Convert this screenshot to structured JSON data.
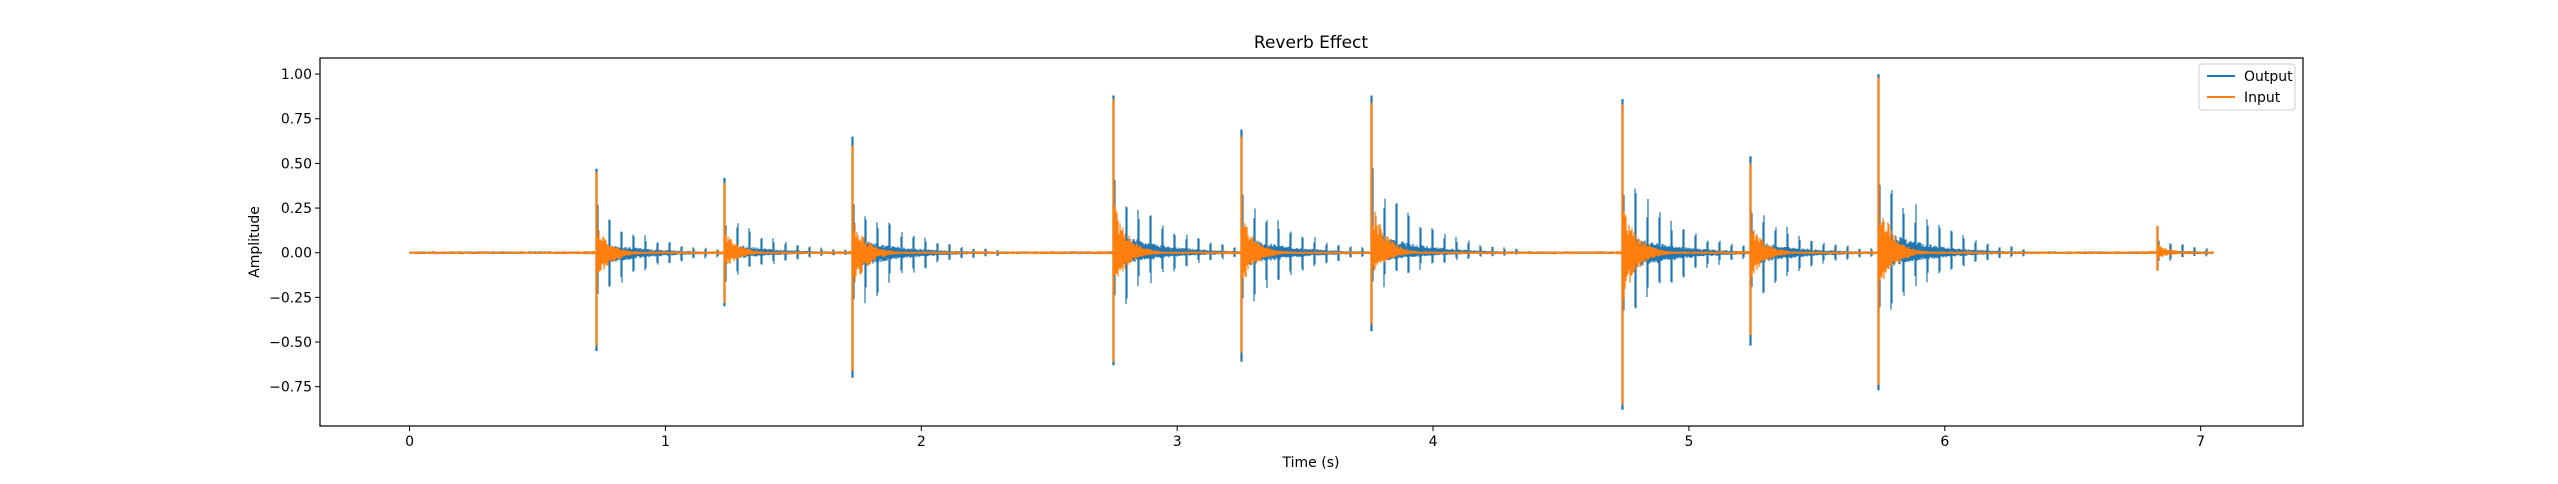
{
  "chart_data": {
    "type": "line",
    "title": "Reverb Effect",
    "xlabel": "Time (s)",
    "ylabel": "Amplitude",
    "xlim": [
      -0.35,
      7.4
    ],
    "ylim": [
      -0.97,
      1.09
    ],
    "x_ticks": [
      0,
      1,
      2,
      3,
      4,
      5,
      6,
      7
    ],
    "y_ticks": [
      -0.75,
      -0.5,
      -0.25,
      0.0,
      0.25,
      0.5,
      0.75,
      1.0
    ],
    "x_tick_labels": [
      "0",
      "1",
      "2",
      "3",
      "4",
      "5",
      "6",
      "7"
    ],
    "y_tick_labels": [
      "−0.75",
      "−0.50",
      "−0.25",
      "0.00",
      "0.25",
      "0.50",
      "0.75",
      "1.00"
    ],
    "grid": false,
    "legend_position": "top-right",
    "duration": 7.05,
    "series": [
      {
        "name": "Output",
        "color": "#1f77b4",
        "peaks": [
          {
            "t": 0.73,
            "max": 0.47,
            "min": -0.55
          },
          {
            "t": 1.23,
            "max": 0.42,
            "min": -0.3
          },
          {
            "t": 1.73,
            "max": 0.65,
            "min": -0.7
          },
          {
            "t": 2.75,
            "max": 0.88,
            "min": -0.63
          },
          {
            "t": 3.25,
            "max": 0.69,
            "min": -0.61
          },
          {
            "t": 3.76,
            "max": 0.88,
            "min": -0.44
          },
          {
            "t": 4.74,
            "max": 0.86,
            "min": -0.88
          },
          {
            "t": 5.24,
            "max": 0.54,
            "min": -0.52
          },
          {
            "t": 5.74,
            "max": 1.0,
            "min": -0.77
          },
          {
            "t": 6.83,
            "max": 0.14,
            "min": -0.1
          }
        ]
      },
      {
        "name": "Input",
        "color": "#ff7f0e",
        "peaks": [
          {
            "t": 0.73,
            "max": 0.45,
            "min": -0.52
          },
          {
            "t": 1.23,
            "max": 0.39,
            "min": -0.28
          },
          {
            "t": 1.73,
            "max": 0.6,
            "min": -0.66
          },
          {
            "t": 2.75,
            "max": 0.86,
            "min": -0.61
          },
          {
            "t": 3.25,
            "max": 0.65,
            "min": -0.56
          },
          {
            "t": 3.76,
            "max": 0.84,
            "min": -0.4
          },
          {
            "t": 4.74,
            "max": 0.83,
            "min": -0.85
          },
          {
            "t": 5.24,
            "max": 0.5,
            "min": -0.46
          },
          {
            "t": 5.74,
            "max": 0.98,
            "min": -0.74
          },
          {
            "t": 6.83,
            "max": 0.15,
            "min": -0.1
          }
        ]
      }
    ]
  }
}
